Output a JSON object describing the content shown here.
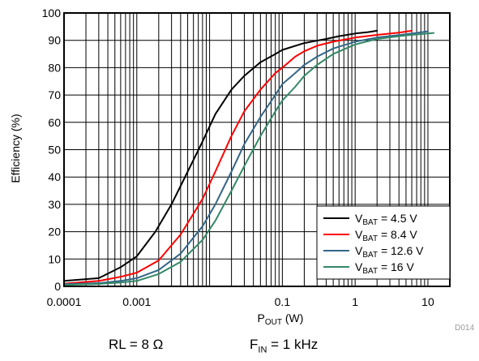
{
  "chart_data": {
    "type": "line",
    "xlabel_main": "P",
    "xlabel_sub": "OUT",
    "xlabel_unit": " (W)",
    "ylabel": "Efficiency (%)",
    "x_scale": "log",
    "xlim": [
      0.0001,
      20
    ],
    "ylim": [
      0,
      100
    ],
    "x_ticks": [
      0.0001,
      0.001,
      0.01,
      0.1,
      1,
      10
    ],
    "x_tick_labels": [
      "0.0001",
      "0.001",
      "",
      "0.1",
      "1",
      "10"
    ],
    "y_ticks": [
      0,
      10,
      20,
      30,
      40,
      50,
      60,
      70,
      80,
      90,
      100
    ],
    "y_tick_labels": [
      "0",
      "10",
      "20",
      "30",
      "40",
      "50",
      "60",
      "70",
      "80",
      "90",
      "100"
    ],
    "grid": true,
    "legend_position": "bottom-right",
    "series": [
      {
        "name_main": "V",
        "name_sub": "BAT",
        "name_rest": " = 4.5 V",
        "color": "#000000",
        "x": [
          0.0001,
          0.0003,
          0.0006,
          0.001,
          0.0018,
          0.003,
          0.005,
          0.008,
          0.012,
          0.02,
          0.03,
          0.05,
          0.08,
          0.1,
          0.2,
          0.4,
          0.6,
          1,
          1.5,
          2
        ],
        "y": [
          2,
          3,
          7,
          11,
          20,
          30,
          42,
          53,
          63,
          72,
          77,
          82,
          85,
          86.5,
          89,
          90.5,
          91.5,
          92.5,
          93,
          93.5
        ]
      },
      {
        "name_main": "V",
        "name_sub": "BAT",
        "name_rest": " = 8.4 V",
        "color": "#ff0000",
        "x": [
          0.0001,
          0.0003,
          0.0006,
          0.001,
          0.002,
          0.004,
          0.008,
          0.012,
          0.02,
          0.03,
          0.05,
          0.08,
          0.1,
          0.15,
          0.2,
          0.3,
          0.5,
          1,
          2,
          4,
          6
        ],
        "y": [
          1,
          2,
          3.5,
          5,
          9.5,
          19,
          32,
          42,
          55,
          64,
          72,
          78,
          80,
          84,
          86,
          88,
          89.5,
          91,
          92,
          92.8,
          93.5
        ]
      },
      {
        "name_main": "V",
        "name_sub": "BAT",
        "name_rest": " = 12.6 V",
        "color": "#336688",
        "x": [
          0.0001,
          0.0003,
          0.0006,
          0.001,
          0.002,
          0.004,
          0.008,
          0.012,
          0.02,
          0.03,
          0.05,
          0.08,
          0.1,
          0.15,
          0.2,
          0.3,
          0.5,
          1,
          2,
          5,
          10
        ],
        "y": [
          0.8,
          1.2,
          2,
          3,
          6,
          12,
          22,
          30,
          42,
          52,
          62,
          70,
          74,
          78,
          81,
          84,
          87,
          89.5,
          91,
          92.2,
          93.3
        ]
      },
      {
        "name_main": "V",
        "name_sub": "BAT",
        "name_rest": " = 16 V",
        "color": "#338866",
        "x": [
          0.0001,
          0.0003,
          0.0006,
          0.001,
          0.002,
          0.004,
          0.008,
          0.012,
          0.02,
          0.03,
          0.05,
          0.08,
          0.1,
          0.15,
          0.2,
          0.3,
          0.5,
          1,
          2,
          5,
          12
        ],
        "y": [
          0.5,
          0.9,
          1.4,
          2,
          4.5,
          9,
          17,
          24,
          35,
          44,
          55,
          64,
          68,
          73,
          77,
          81,
          85,
          88.5,
          90.5,
          91.8,
          92.7
        ]
      }
    ]
  },
  "figure_id": "D014",
  "conditions": {
    "rl_text": "RL = 8 Ω",
    "fin_main": "F",
    "fin_sub": "IN",
    "fin_rest": " = 1 kHz"
  }
}
